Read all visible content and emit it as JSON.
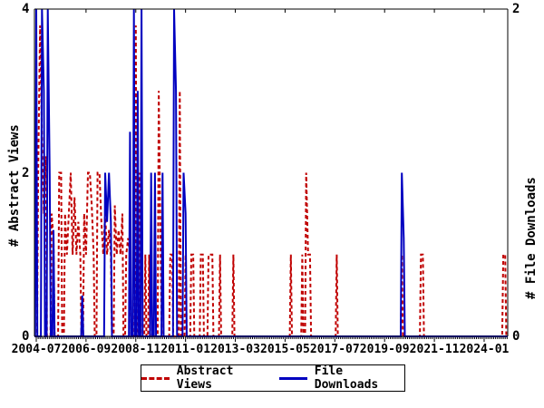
{
  "chart_data": {
    "type": "line",
    "title": "",
    "x_axis": {
      "tick_labels": [
        "2004-07",
        "2006-09",
        "2008-11",
        "2011-01",
        "2013-03",
        "2015-05",
        "2017-07",
        "2019-09",
        "2021-11",
        "2024-01"
      ],
      "tick_month_index": [
        0,
        26,
        52,
        78,
        104,
        130,
        156,
        182,
        208,
        234
      ],
      "minor_tick_every_months": 1,
      "months_range": [
        0,
        246
      ],
      "start_month": "2004-07"
    },
    "y_left": {
      "label": "# Abstract Views",
      "ticks": [
        "0",
        "2",
        "4"
      ],
      "tick_values": [
        0,
        2,
        4
      ],
      "range": [
        0,
        4
      ]
    },
    "y_right": {
      "label": "# File Downloads",
      "ticks": [
        "0",
        "2"
      ],
      "tick_values": [
        0,
        2
      ],
      "range": [
        0,
        2
      ]
    },
    "legend": {
      "position": "bottom-center",
      "items": [
        {
          "label": "Abstract Views",
          "style": "dashed",
          "color": "#c00000"
        },
        {
          "label": "File Downloads",
          "style": "solid",
          "color": "#0000c0"
        }
      ]
    },
    "series": [
      {
        "name": "Abstract Views",
        "axis": "left",
        "color": "#c00000",
        "dash": "4,3",
        "points": [
          [
            1,
            2
          ],
          [
            2,
            3.8
          ],
          [
            3,
            2.4
          ],
          [
            4,
            1.5
          ],
          [
            5,
            2.2
          ],
          [
            8,
            1.5
          ],
          [
            9,
            1.2
          ],
          [
            12,
            2
          ],
          [
            13,
            2
          ],
          [
            15,
            1.5
          ],
          [
            16,
            1
          ],
          [
            17,
            1.5
          ],
          [
            18,
            2
          ],
          [
            19,
            1
          ],
          [
            20,
            1.7
          ],
          [
            21,
            1
          ],
          [
            22,
            1.4
          ],
          [
            23,
            1
          ],
          [
            25,
            1.5
          ],
          [
            26,
            1
          ],
          [
            27,
            2
          ],
          [
            28,
            2
          ],
          [
            29,
            1.6
          ],
          [
            30,
            1
          ],
          [
            32,
            2
          ],
          [
            33,
            2
          ],
          [
            34,
            1.4
          ],
          [
            35,
            1
          ],
          [
            36,
            1.5
          ],
          [
            37,
            1
          ],
          [
            38,
            1.3
          ],
          [
            39,
            1
          ],
          [
            41,
            1.6
          ],
          [
            42,
            1
          ],
          [
            43,
            1.3
          ],
          [
            44,
            1
          ],
          [
            45,
            1.5
          ],
          [
            47,
            1
          ],
          [
            48,
            1.2
          ],
          [
            49,
            1
          ],
          [
            52,
            3.8
          ],
          [
            54,
            2
          ],
          [
            57,
            1
          ],
          [
            59,
            1
          ],
          [
            64,
            3
          ],
          [
            65,
            1
          ],
          [
            70,
            1
          ],
          [
            71,
            1
          ],
          [
            75,
            3
          ],
          [
            78,
            1
          ],
          [
            81,
            1
          ],
          [
            82,
            1
          ],
          [
            86,
            1
          ],
          [
            87,
            1
          ],
          [
            90,
            1
          ],
          [
            91,
            1
          ],
          [
            92,
            1
          ],
          [
            96,
            1
          ],
          [
            103,
            1
          ],
          [
            133,
            1
          ],
          [
            139,
            1
          ],
          [
            141,
            2
          ],
          [
            142,
            1
          ],
          [
            143,
            1
          ],
          [
            157,
            1
          ],
          [
            191,
            1
          ],
          [
            201,
            1
          ],
          [
            202,
            1
          ],
          [
            244,
            1
          ],
          [
            245,
            1
          ]
        ]
      },
      {
        "name": "File Downloads",
        "axis": "right",
        "color": "#0000c0",
        "dash": "",
        "points": [
          [
            0,
            2
          ],
          [
            3,
            2
          ],
          [
            4,
            1.5
          ],
          [
            6,
            2
          ],
          [
            7,
            1
          ],
          [
            9,
            0.65
          ],
          [
            24,
            0.25
          ],
          [
            36,
            1
          ],
          [
            37,
            0.7
          ],
          [
            38,
            1
          ],
          [
            39,
            0.7
          ],
          [
            49,
            1.25
          ],
          [
            51,
            2
          ],
          [
            53,
            1.5
          ],
          [
            55,
            2
          ],
          [
            60,
            1
          ],
          [
            62,
            1
          ],
          [
            66,
            1
          ],
          [
            72,
            2
          ],
          [
            73,
            1.5
          ],
          [
            77,
            1
          ],
          [
            78,
            0.75
          ],
          [
            191,
            1
          ],
          [
            192,
            0.6
          ]
        ]
      }
    ]
  }
}
